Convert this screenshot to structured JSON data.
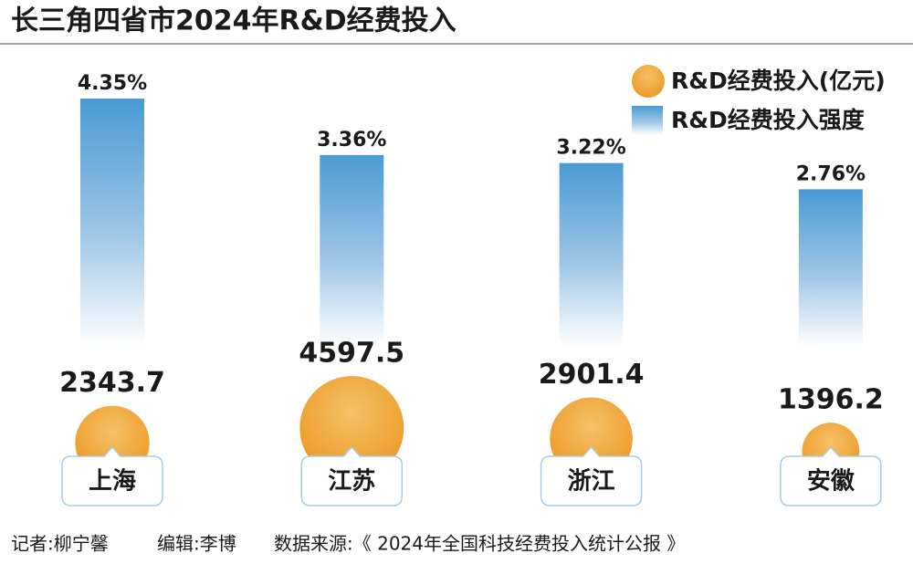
{
  "chart_data": {
    "type": "bar",
    "title": "长三角四省市2024年R&D经费投入",
    "categories": [
      "上海",
      "江苏",
      "浙江",
      "安徽"
    ],
    "series": [
      {
        "name": "R&D经费投入(亿元)",
        "type": "bubble",
        "color": "#f0a22e",
        "values": [
          2343.7,
          4597.5,
          2901.4,
          1396.2
        ]
      },
      {
        "name": "R&D经费投入强度",
        "type": "bar",
        "color": "#4a9ad4",
        "values": [
          4.35,
          3.36,
          3.22,
          2.76
        ],
        "value_labels": [
          "4.35%",
          "3.36%",
          "3.22%",
          "2.76%"
        ]
      }
    ],
    "legend": "top-right",
    "annotations": [
      "记者:柳宁馨",
      "编辑:李博",
      "数据来源:《 2024年全国科技经费投入统计公报 》"
    ]
  }
}
